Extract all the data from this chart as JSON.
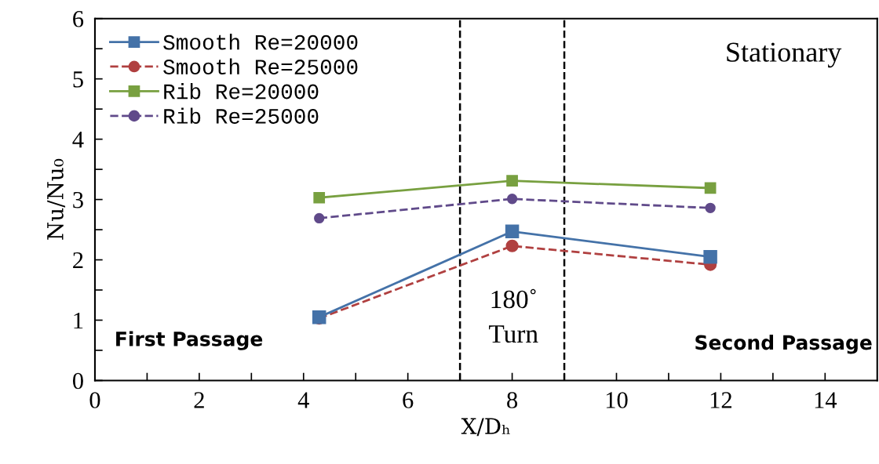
{
  "chart_data": {
    "type": "line",
    "xlabel": "X/Dₕ",
    "ylabel": "Nu/Nu₀",
    "xlim": [
      0,
      15
    ],
    "xticks": [
      0,
      {
        "value": 1,
        "label": null
      },
      2,
      {
        "value": 3,
        "label": null
      },
      4,
      {
        "value": 5,
        "label": null
      },
      6,
      {
        "value": 7,
        "label": null
      },
      8,
      {
        "value": 9,
        "label": null
      },
      10,
      {
        "value": 11,
        "label": null
      },
      12,
      {
        "value": 13,
        "label": null
      },
      14
    ],
    "ylim": [
      0,
      6
    ],
    "yticks": [
      0,
      {
        "value": 0.5,
        "label": null
      },
      1,
      {
        "value": 1.5,
        "label": null
      },
      2,
      {
        "value": 2.5,
        "label": null
      },
      3,
      {
        "value": 3.5,
        "label": null
      },
      4,
      {
        "value": 4.5,
        "label": null
      },
      5,
      {
        "value": 5.5,
        "label": null
      },
      6
    ],
    "x": [
      4.3,
      8,
      11.8
    ],
    "series": [
      {
        "name": "Smooth Re=20000",
        "color": "#4472a8",
        "values": [
          1.05,
          2.47,
          2.05
        ],
        "marker": "square",
        "line_style": "solid"
      },
      {
        "name": "Smooth Re=25000",
        "color": "#b04040",
        "values": [
          1.03,
          2.23,
          1.92
        ],
        "marker": "circle",
        "line_style": "dashed"
      },
      {
        "name": "Rib Re=20000",
        "color": "#78a040",
        "values": [
          3.03,
          3.31,
          3.19
        ],
        "marker": "square",
        "line_style": "solid"
      },
      {
        "name": "Rib Re=25000",
        "color": "#604a8a",
        "values": [
          2.69,
          3.01,
          2.86
        ],
        "marker": "circle",
        "line_style": "dashed"
      }
    ],
    "ref_lines": [
      {
        "axis": "x",
        "value": 7,
        "color": "#000000",
        "line_style": "dashed"
      },
      {
        "axis": "x",
        "value": 9,
        "color": "#000000",
        "line_style": "dashed"
      }
    ],
    "annotations": [
      "Stationary",
      "First Passage",
      "180˚\nTurn",
      "Second Passage"
    ],
    "grid": false,
    "legend": "top left"
  }
}
